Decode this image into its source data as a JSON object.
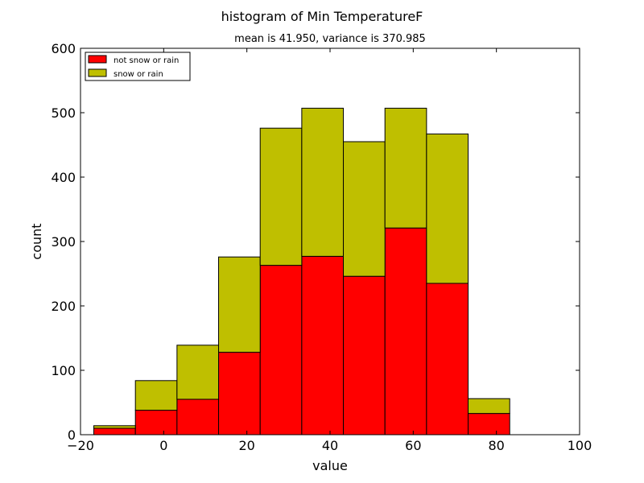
{
  "chart_data": {
    "type": "bar",
    "suptitle": "histogram of Min TemperatureF",
    "title": "mean is 41.950, variance is 370.985",
    "xlabel": "value",
    "ylabel": "count",
    "xlim": [
      -20,
      100
    ],
    "ylim": [
      0,
      600
    ],
    "xticks": [
      -20,
      0,
      20,
      40,
      60,
      80,
      100
    ],
    "yticks": [
      0,
      100,
      200,
      300,
      400,
      500,
      600
    ],
    "bin_edges": [
      -16.8,
      -6.8,
      3.2,
      13.2,
      23.2,
      33.2,
      43.2,
      53.2,
      63.2,
      73.2,
      83.2
    ],
    "stacked": true,
    "legend_position": "top-left",
    "series": [
      {
        "name": "not snow or rain",
        "color": "#ff0000",
        "values": [
          10,
          38,
          55,
          128,
          263,
          277,
          246,
          321,
          235,
          33
        ]
      },
      {
        "name": "snow or rain",
        "color": "#bfbf00",
        "values": [
          4,
          46,
          84,
          148,
          213,
          230,
          209,
          186,
          232,
          23
        ]
      }
    ]
  }
}
